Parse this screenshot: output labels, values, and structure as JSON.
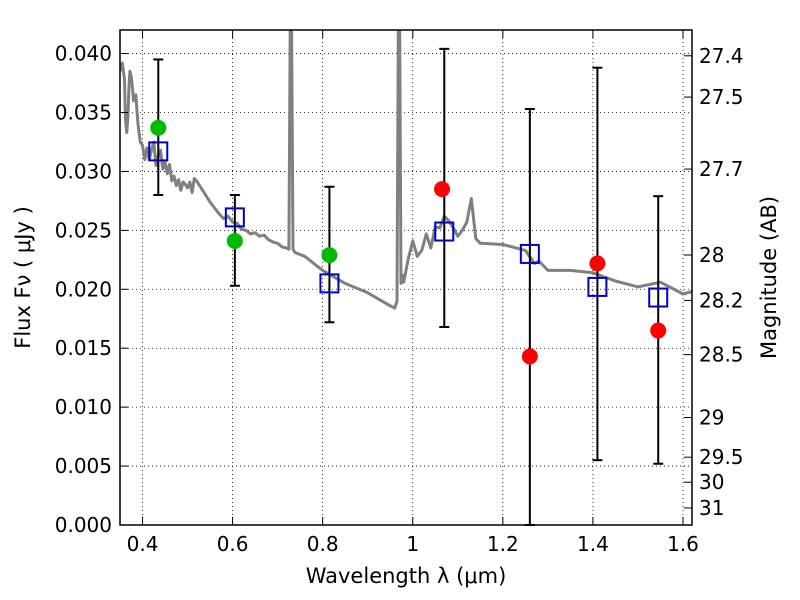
{
  "chart_data": {
    "type": "scatter",
    "xlabel": "Wavelength  λ (μm)",
    "ylabel": "Flux  Fν  ( μJy )",
    "y2label": "Magnitude (AB)",
    "xlim": [
      0.35,
      1.62
    ],
    "ylim": [
      0.0,
      0.042
    ],
    "grid": true,
    "x_ticks": [
      0.4,
      0.6,
      0.8,
      1.0,
      1.2,
      1.4,
      1.6
    ],
    "x_tick_labels": [
      "0.4",
      "0.6",
      "0.8",
      "1",
      "1.2",
      "1.4",
      "1.6"
    ],
    "y_ticks": [
      0.0,
      0.005,
      0.01,
      0.015,
      0.02,
      0.025,
      0.03,
      0.035,
      0.04
    ],
    "y_tick_labels": [
      "0.000",
      "0.005",
      "0.010",
      "0.015",
      "0.020",
      "0.025",
      "0.030",
      "0.035",
      "0.040"
    ],
    "mag_ticks": [
      27.4,
      27.5,
      27.7,
      28,
      28.2,
      28.5,
      29,
      29.5,
      30,
      31
    ],
    "mag_tick_labels": [
      "27.4",
      "27.5",
      "27.7",
      "28",
      "28.2",
      "28.5",
      "29",
      "29.5",
      "30",
      "31"
    ],
    "series": [
      {
        "kind": "line",
        "color": "#808080",
        "x": [
          0.35,
          0.355,
          0.36,
          0.362,
          0.365,
          0.368,
          0.37,
          0.372,
          0.375,
          0.378,
          0.38,
          0.385,
          0.39,
          0.395,
          0.4,
          0.405,
          0.41,
          0.415,
          0.42,
          0.425,
          0.43,
          0.435,
          0.44,
          0.445,
          0.45,
          0.455,
          0.46,
          0.465,
          0.47,
          0.475,
          0.48,
          0.485,
          0.49,
          0.495,
          0.5,
          0.505,
          0.51,
          0.515,
          0.52,
          0.53,
          0.54,
          0.55,
          0.56,
          0.57,
          0.58,
          0.59,
          0.6,
          0.61,
          0.62,
          0.63,
          0.64,
          0.65,
          0.66,
          0.67,
          0.68,
          0.69,
          0.7,
          0.71,
          0.72,
          0.725,
          0.728,
          0.731,
          0.734,
          0.737,
          0.74,
          0.76,
          0.8,
          0.85,
          0.9,
          0.95,
          0.96,
          0.965,
          0.968,
          0.971,
          0.974,
          0.977,
          0.98,
          0.99,
          1.0,
          1.01,
          1.02,
          1.03,
          1.04,
          1.05,
          1.06,
          1.07,
          1.08,
          1.09,
          1.1,
          1.11,
          1.12,
          1.13,
          1.14,
          1.15,
          1.2,
          1.25,
          1.27,
          1.28,
          1.3,
          1.35,
          1.4,
          1.45,
          1.5,
          1.55,
          1.6,
          1.62
        ],
        "y": [
          0.0385,
          0.0392,
          0.0378,
          0.0345,
          0.0333,
          0.035,
          0.0372,
          0.0385,
          0.038,
          0.037,
          0.036,
          0.0365,
          0.034,
          0.0325,
          0.0322,
          0.031,
          0.032,
          0.031,
          0.0318,
          0.0325,
          0.0305,
          0.0313,
          0.0318,
          0.0302,
          0.0308,
          0.0298,
          0.0306,
          0.0292,
          0.0296,
          0.0288,
          0.0293,
          0.0284,
          0.0291,
          0.0289,
          0.0286,
          0.0291,
          0.0282,
          0.0294,
          0.0292,
          0.0286,
          0.028,
          0.0274,
          0.0269,
          0.0264,
          0.026,
          0.0262,
          0.0257,
          0.0256,
          0.0251,
          0.025,
          0.0247,
          0.0248,
          0.0245,
          0.0246,
          0.0242,
          0.024,
          0.0239,
          0.0236,
          0.0235,
          0.0234,
          0.042,
          0.042,
          0.0234,
          0.0232,
          0.0231,
          0.0228,
          0.0216,
          0.0205,
          0.0197,
          0.0186,
          0.0184,
          0.019,
          0.042,
          0.042,
          0.0205,
          0.0212,
          0.0206,
          0.0226,
          0.0241,
          0.0228,
          0.0233,
          0.0247,
          0.0235,
          0.0253,
          0.0252,
          0.0262,
          0.0258,
          0.0252,
          0.0245,
          0.025,
          0.0257,
          0.0277,
          0.0243,
          0.0239,
          0.0238,
          0.0233,
          0.0222,
          0.0224,
          0.0216,
          0.0216,
          0.0214,
          0.0207,
          0.0202,
          0.0206,
          0.0196,
          0.0198
        ]
      },
      {
        "kind": "points",
        "marker": "circle",
        "color": "#00bb00",
        "x": [
          0.435,
          0.605,
          0.815
        ],
        "y": [
          0.0337,
          0.0241,
          0.0229
        ]
      },
      {
        "kind": "points",
        "marker": "circle",
        "color": "#ff0000",
        "x": [
          1.065,
          1.26,
          1.41,
          1.545
        ],
        "y": [
          0.0285,
          0.0143,
          0.0222,
          0.0165
        ]
      },
      {
        "kind": "errorbar",
        "marker": "open-square",
        "color": "#0000cc",
        "x": [
          0.435,
          0.605,
          0.815,
          1.07,
          1.26,
          1.41,
          1.545
        ],
        "y": [
          0.0317,
          0.0261,
          0.0205,
          0.0249,
          0.023,
          0.0202,
          0.0193
        ],
        "yerr_low": [
          0.028,
          0.0203,
          0.0172,
          0.0168,
          0.0,
          0.0055,
          0.0052
        ],
        "yerr_high": [
          0.0395,
          0.028,
          0.0287,
          0.0404,
          0.0353,
          0.0388,
          0.0279
        ]
      }
    ]
  }
}
